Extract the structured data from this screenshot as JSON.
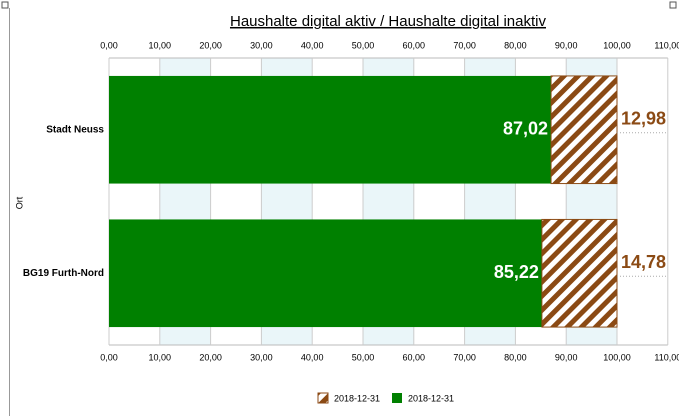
{
  "chart_data": {
    "type": "stacked-bar-horizontal",
    "title": "Haushalte digital aktiv / Haushalte digital inaktiv",
    "y_label": "Ort",
    "categories": [
      "Stadt Neuss",
      "BG19 Furth-Nord"
    ],
    "series": [
      {
        "name": "2018-12-31",
        "color": "#008000",
        "values": [
          87.02,
          85.22
        ],
        "value_labels": [
          "87,02",
          "85,22"
        ]
      },
      {
        "name": "2018-12-31",
        "color": "#8b4a14",
        "pattern": "hatch",
        "values": [
          12.98,
          14.78
        ],
        "value_labels": [
          "12,98",
          "14,78"
        ]
      }
    ],
    "xlim": [
      0,
      110
    ],
    "xticks": [
      {
        "value": 0,
        "label": "0,00"
      },
      {
        "value": 10,
        "label": "10,00"
      },
      {
        "value": 20,
        "label": "20,00"
      },
      {
        "value": 30,
        "label": "30,00"
      },
      {
        "value": 40,
        "label": "40,00"
      },
      {
        "value": 50,
        "label": "50,00"
      },
      {
        "value": 60,
        "label": "60,00"
      },
      {
        "value": 70,
        "label": "70,00"
      },
      {
        "value": 80,
        "label": "80,00"
      },
      {
        "value": 90,
        "label": "90,00"
      },
      {
        "value": 100,
        "label": "100,00"
      },
      {
        "value": 110,
        "label": "110,00"
      }
    ],
    "grid": true
  }
}
